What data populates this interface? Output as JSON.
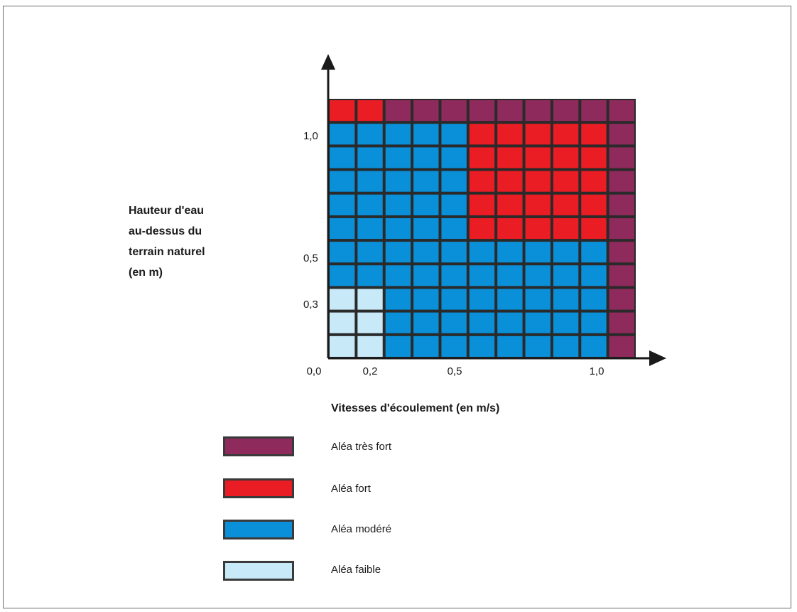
{
  "chart_data": {
    "type": "heatmap",
    "ylabel_lines": [
      "Hauteur d'eau",
      "au-dessus du",
      "terrain naturel",
      "(en m)"
    ],
    "xlabel": "Vitesses d'écoulement (en m/s)",
    "x_ticks": [
      "0,0",
      "0,2",
      "0,5",
      "1,0"
    ],
    "y_ticks": [
      "1,0",
      "0,5",
      "0,3"
    ],
    "grid": true,
    "colors": {
      "tres_fort": "#8e2a5c",
      "fort": "#ea1c24",
      "modere": "#0a8fd9",
      "faible": "#c8e9f8",
      "border": "#2a2a2a"
    },
    "rows_top_to_bottom": [
      [
        "fort",
        "fort",
        "tres_fort",
        "tres_fort",
        "tres_fort",
        "tres_fort",
        "tres_fort",
        "tres_fort",
        "tres_fort",
        "tres_fort",
        "tres_fort"
      ],
      [
        "modere",
        "modere",
        "modere",
        "modere",
        "modere",
        "fort",
        "fort",
        "fort",
        "fort",
        "fort",
        "tres_fort"
      ],
      [
        "modere",
        "modere",
        "modere",
        "modere",
        "modere",
        "fort",
        "fort",
        "fort",
        "fort",
        "fort",
        "tres_fort"
      ],
      [
        "modere",
        "modere",
        "modere",
        "modere",
        "modere",
        "fort",
        "fort",
        "fort",
        "fort",
        "fort",
        "tres_fort"
      ],
      [
        "modere",
        "modere",
        "modere",
        "modere",
        "modere",
        "fort",
        "fort",
        "fort",
        "fort",
        "fort",
        "tres_fort"
      ],
      [
        "modere",
        "modere",
        "modere",
        "modere",
        "modere",
        "fort",
        "fort",
        "fort",
        "fort",
        "fort",
        "tres_fort"
      ],
      [
        "modere",
        "modere",
        "modere",
        "modere",
        "modere",
        "modere",
        "modere",
        "modere",
        "modere",
        "modere",
        "tres_fort"
      ],
      [
        "modere",
        "modere",
        "modere",
        "modere",
        "modere",
        "modere",
        "modere",
        "modere",
        "modere",
        "modere",
        "tres_fort"
      ],
      [
        "faible",
        "faible",
        "modere",
        "modere",
        "modere",
        "modere",
        "modere",
        "modere",
        "modere",
        "modere",
        "tres_fort"
      ],
      [
        "faible",
        "faible",
        "modere",
        "modere",
        "modere",
        "modere",
        "modere",
        "modere",
        "modere",
        "modere",
        "tres_fort"
      ],
      [
        "faible",
        "faible",
        "modere",
        "modere",
        "modere",
        "modere",
        "modere",
        "modere",
        "modere",
        "modere",
        "tres_fort"
      ]
    ],
    "legend": [
      {
        "key": "tres_fort",
        "label": "Aléa très fort"
      },
      {
        "key": "fort",
        "label": "Aléa fort"
      },
      {
        "key": "modere",
        "label": "Aléa modéré"
      },
      {
        "key": "faible",
        "label": "Aléa faible"
      }
    ]
  }
}
